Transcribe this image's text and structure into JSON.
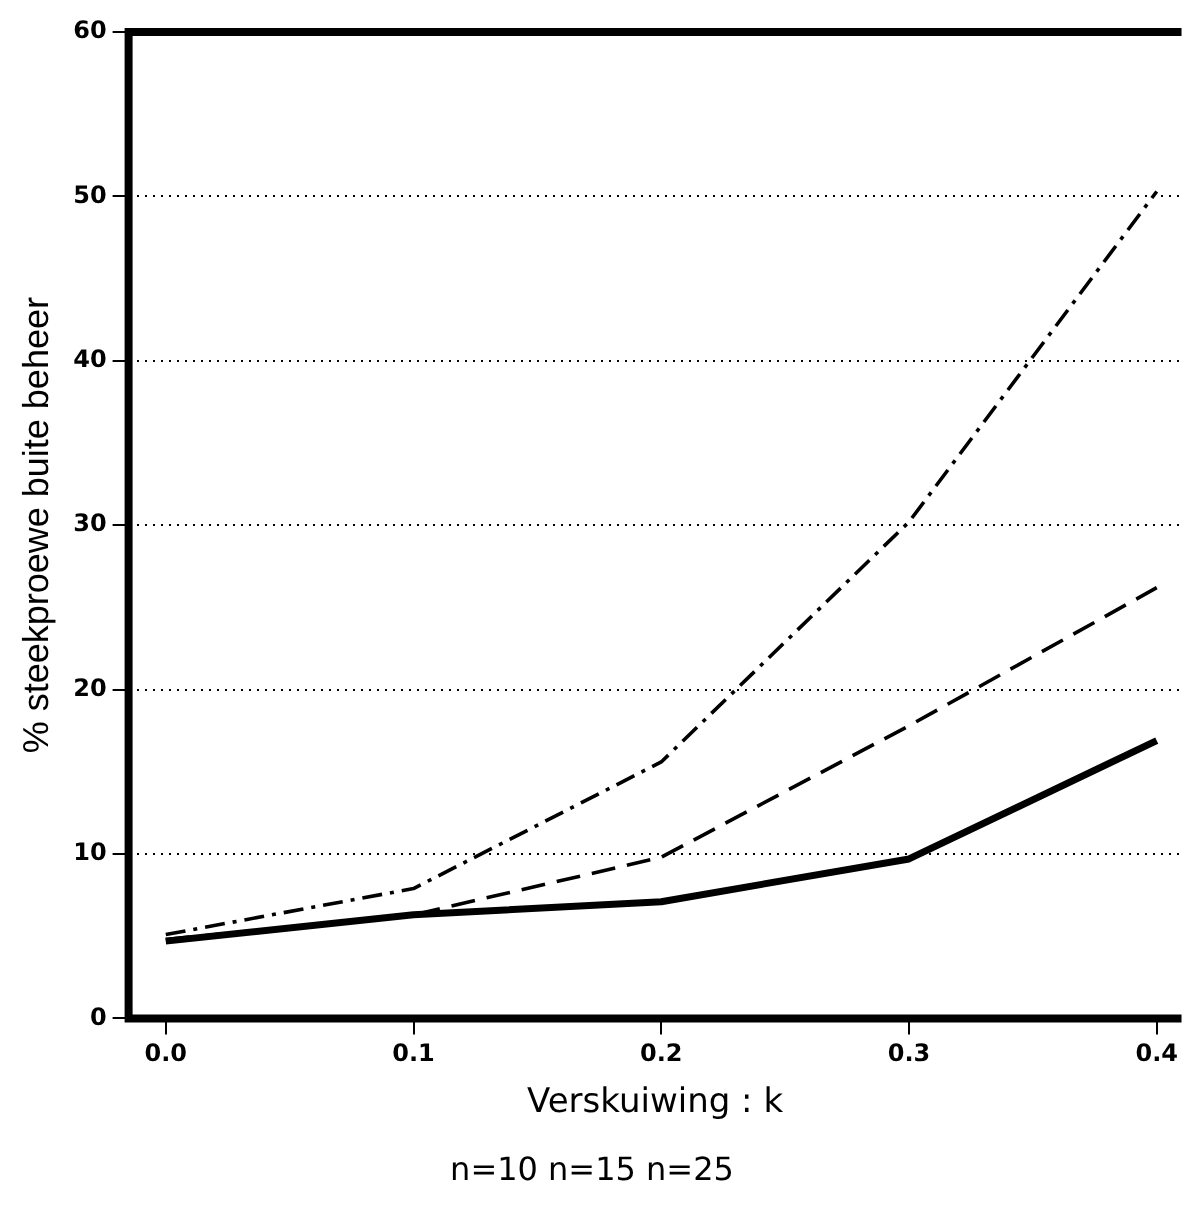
{
  "chart_data": {
    "type": "line",
    "xlabel": "Verskuiwing : k",
    "ylabel": "% steekproewe buite beheer",
    "x": [
      0.0,
      0.1,
      0.2,
      0.3,
      0.4
    ],
    "series": [
      {
        "color": "#000000",
        "line_style": "solid",
        "values": [
          4.7,
          6.3,
          7.1,
          9.7,
          16.9
        ]
      },
      {
        "color": "#000000",
        "line_style": "dashed",
        "values": [
          4.8,
          6.3,
          9.8,
          17.8,
          26.2
        ]
      },
      {
        "color": "#000000",
        "line_style": "dashdot",
        "values": [
          5.1,
          7.9,
          15.6,
          30.2,
          50.3
        ]
      }
    ],
    "xlim": [
      -0.015,
      0.41
    ],
    "ylim": [
      0,
      60
    ],
    "xticks": [
      {
        "value": 0,
        "label": "0.0"
      },
      0.1,
      0.2,
      0.3,
      0.4
    ],
    "yticks": [
      0,
      10,
      20,
      30,
      40,
      50,
      60
    ],
    "grid": "y",
    "legend": false,
    "marker": "none",
    "annotations": [
      "n=10 n=15 n=25"
    ]
  }
}
